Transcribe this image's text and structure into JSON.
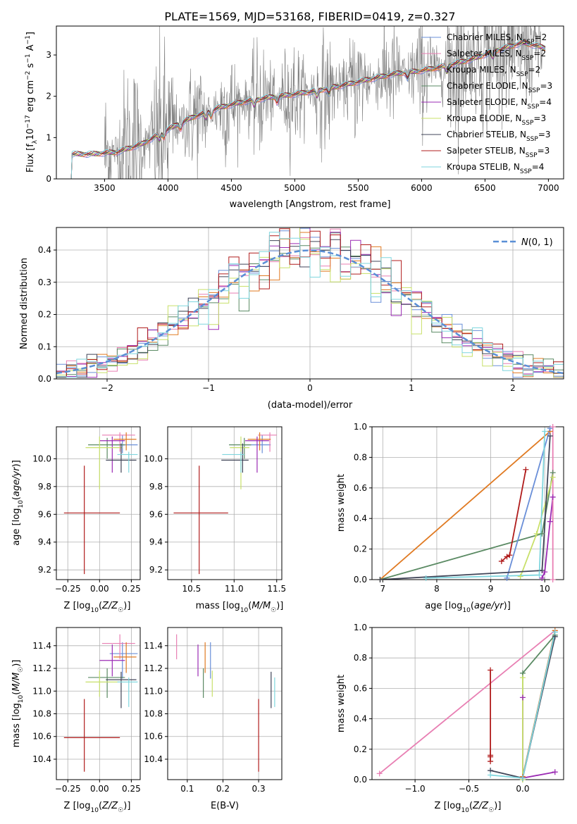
{
  "figure_title": "PLATE=1569, MJD=53168, FIBERID=0419, z=0.327",
  "colors": {
    "chabrier_miles": "#6a8fd8",
    "salpeter_miles": "#e87fb3",
    "kroupa_miles": "#e07a22",
    "chabrier_elodie": "#5a8a63",
    "salpeter_elodie": "#9b2bb4",
    "kroupa_elodie": "#c8e06a",
    "chabrier_stelib": "#404558",
    "salpeter_stelib": "#b01c1c",
    "kroupa_stelib": "#7fd6de",
    "data": "#808080",
    "normal": "#5a8fd6"
  },
  "chart_data": [
    {
      "id": "spectrum",
      "type": "line",
      "xlabel": "wavelength [Angstrom, rest frame]",
      "ylabel": "Flux [f_λ10^-17 erg cm^-2 s^-1 A^-1]",
      "xticks": [
        3500,
        4000,
        4500,
        5000,
        5500,
        6000,
        6500,
        7000
      ],
      "yticks": [
        0,
        1,
        2,
        3
      ],
      "xlim": [
        3120,
        7120
      ],
      "ylim": [
        0,
        3.7
      ],
      "legend_position": "upper-right",
      "legend": [
        {
          "label": "Chabrier MILES, N_SSP=2",
          "color_key": "chabrier_miles"
        },
        {
          "label": "Salpeter MILES, N_SSP=2",
          "color_key": "salpeter_miles"
        },
        {
          "label": "Kroupa MILES, N_SSP=2",
          "color_key": "kroupa_miles"
        },
        {
          "label": "Chabrier ELODIE, N_SSP=3",
          "color_key": "chabrier_elodie"
        },
        {
          "label": "Salpeter ELODIE, N_SSP=4",
          "color_key": "salpeter_elodie"
        },
        {
          "label": "Kroupa ELODIE, N_SSP=3",
          "color_key": "kroupa_elodie"
        },
        {
          "label": "Chabrier STELIB, N_SSP=3",
          "color_key": "chabrier_stelib"
        },
        {
          "label": "Salpeter STELIB, N_SSP=3",
          "color_key": "salpeter_stelib"
        },
        {
          "label": "Kroupa STELIB, N_SSP=4",
          "color_key": "kroupa_stelib"
        }
      ],
      "data_range": [
        3500,
        6950
      ],
      "model_anchors": {
        "x": [
          3220,
          3400,
          3600,
          3800,
          4000,
          4200,
          4400,
          4600,
          4800,
          5000,
          5200,
          5400,
          5600,
          5800,
          6000,
          6200,
          6400,
          6600,
          6800,
          7000
        ],
        "y": [
          0.6,
          0.6,
          0.65,
          0.85,
          1.2,
          1.5,
          1.72,
          1.87,
          1.97,
          2.05,
          2.15,
          2.28,
          2.42,
          2.55,
          2.62,
          2.74,
          2.9,
          3.12,
          3.3,
          3.15
        ]
      }
    },
    {
      "id": "residual_histogram",
      "type": "histogram",
      "xlabel": "(data-model)/error",
      "ylabel": "Normed distribution",
      "xlim": [
        -2.5,
        2.5
      ],
      "ylim": [
        0,
        0.47
      ],
      "xticks": [
        -2,
        -1,
        0,
        1,
        2
      ],
      "yticks": [
        0.0,
        0.1,
        0.2,
        0.3,
        0.4
      ],
      "bin_width": 0.1,
      "legend": [
        {
          "label": "N(0,1)",
          "color_key": "normal"
        }
      ]
    },
    {
      "id": "age_vs_Z",
      "type": "errorbar",
      "xlabel": "Z [log10(Z/Z☉)]",
      "ylabel": "age [log10(age/yr)]",
      "xlim": [
        -0.34,
        0.32
      ],
      "ylim": [
        9.13,
        10.23
      ],
      "xticks": [
        -0.25,
        0.0,
        0.25
      ],
      "yticks": [
        9.2,
        9.4,
        9.6,
        9.8,
        10.0
      ],
      "points": [
        {
          "color_key": "chabrier_miles",
          "x": 0.18,
          "xerr": [
            0.1,
            0.12
          ],
          "y": 10.1,
          "yerr": [
            0.06,
            0.07
          ]
        },
        {
          "color_key": "salpeter_miles",
          "x": 0.16,
          "xerr": [
            0.14,
            0.12
          ],
          "y": 10.17,
          "yerr": [
            0.12,
            0.02
          ]
        },
        {
          "color_key": "kroupa_miles",
          "x": 0.21,
          "xerr": [
            0.1,
            0.08
          ],
          "y": 10.14,
          "yerr": [
            0.08,
            0.05
          ]
        },
        {
          "color_key": "chabrier_elodie",
          "x": 0.06,
          "xerr": [
            0.15,
            0.14
          ],
          "y": 10.1,
          "yerr": [
            0.1,
            0.05
          ]
        },
        {
          "color_key": "salpeter_elodie",
          "x": 0.1,
          "xerr": [
            0.1,
            0.1
          ],
          "y": 10.13,
          "yerr": [
            0.23,
            0.03
          ]
        },
        {
          "color_key": "kroupa_elodie",
          "x": 0.0,
          "xerr": [
            0.11,
            0.18
          ],
          "y": 10.08,
          "yerr": [
            0.3,
            0.08
          ]
        },
        {
          "color_key": "chabrier_stelib",
          "x": 0.17,
          "xerr": [
            0.12,
            0.12
          ],
          "y": 9.99,
          "yerr": [
            0.09,
            0.12
          ]
        },
        {
          "color_key": "salpeter_stelib",
          "x": -0.12,
          "xerr": [
            0.16,
            0.28
          ],
          "y": 9.61,
          "yerr": [
            0.44,
            0.34
          ]
        },
        {
          "color_key": "kroupa_stelib",
          "x": 0.23,
          "xerr": [
            0.09,
            0.07
          ],
          "y": 10.03,
          "yerr": [
            0.13,
            0.02
          ]
        }
      ]
    },
    {
      "id": "age_vs_mass",
      "type": "errorbar",
      "xlabel": "mass [log10(M/M☉)]",
      "ylabel": "",
      "xlim": [
        10.22,
        11.56
      ],
      "ylim": [
        9.13,
        10.23
      ],
      "xticks": [
        10.5,
        11.0,
        11.5
      ],
      "yticks": [
        9.2,
        9.4,
        9.6,
        9.8,
        10.0
      ],
      "points": [
        {
          "color_key": "chabrier_miles",
          "x": 11.33,
          "xerr": [
            0.22,
            0.1
          ],
          "y": 10.1,
          "yerr": [
            0.06,
            0.07
          ]
        },
        {
          "color_key": "salpeter_miles",
          "x": 11.42,
          "xerr": [
            0.14,
            0.08
          ],
          "y": 10.17,
          "yerr": [
            0.12,
            0.02
          ]
        },
        {
          "color_key": "kroupa_miles",
          "x": 11.3,
          "xerr": [
            0.14,
            0.13
          ],
          "y": 10.14,
          "yerr": [
            0.08,
            0.05
          ]
        },
        {
          "color_key": "chabrier_elodie",
          "x": 11.12,
          "xerr": [
            0.18,
            0.08
          ],
          "y": 10.1,
          "yerr": [
            0.1,
            0.05
          ]
        },
        {
          "color_key": "salpeter_elodie",
          "x": 11.27,
          "xerr": [
            0.14,
            0.14
          ],
          "y": 10.13,
          "yerr": [
            0.23,
            0.03
          ]
        },
        {
          "color_key": "kroupa_elodie",
          "x": 11.08,
          "xerr": [
            0.13,
            0.1
          ],
          "y": 10.08,
          "yerr": [
            0.3,
            0.08
          ]
        },
        {
          "color_key": "chabrier_stelib",
          "x": 11.1,
          "xerr": [
            0.25,
            0.07
          ],
          "y": 9.99,
          "yerr": [
            0.09,
            0.12
          ]
        },
        {
          "color_key": "salpeter_stelib",
          "x": 10.59,
          "xerr": [
            0.3,
            0.34
          ],
          "y": 9.61,
          "yerr": [
            0.44,
            0.34
          ]
        },
        {
          "color_key": "kroupa_stelib",
          "x": 11.08,
          "xerr": [
            0.22,
            0.04
          ],
          "y": 10.03,
          "yerr": [
            0.13,
            0.02
          ]
        }
      ]
    },
    {
      "id": "mass_weight_vs_age",
      "type": "line",
      "xlabel": "age [log10(age/yr)]",
      "ylabel": "mass weight",
      "xlim": [
        6.8,
        10.35
      ],
      "ylim": [
        0,
        1.0
      ],
      "xticks": [
        7,
        8,
        9,
        10
      ],
      "yticks": [
        0.0,
        0.2,
        0.4,
        0.6,
        0.8,
        1.0
      ],
      "series": [
        {
          "color_key": "kroupa_miles",
          "x": [
            6.95,
            10.1
          ],
          "y": [
            0.0,
            0.97
          ]
        },
        {
          "color_key": "chabrier_elodie",
          "x": [
            6.95,
            9.95,
            10.15
          ],
          "y": [
            0.0,
            0.3,
            0.7
          ]
        },
        {
          "color_key": "chabrier_miles",
          "x": [
            9.3,
            10.1
          ],
          "y": [
            0.01,
            0.99
          ]
        },
        {
          "color_key": "salpeter_elodie",
          "x": [
            9.95,
            10.0,
            10.1,
            10.15
          ],
          "y": [
            0.01,
            0.05,
            0.38,
            0.54
          ]
        },
        {
          "color_key": "kroupa_elodie",
          "x": [
            9.55,
            9.85,
            10.15
          ],
          "y": [
            0.02,
            0.3,
            0.67
          ]
        },
        {
          "color_key": "chabrier_stelib",
          "x": [
            6.95,
            9.95,
            10.1
          ],
          "y": [
            0.0,
            0.06,
            0.94
          ]
        },
        {
          "color_key": "salpeter_stelib",
          "x": [
            9.2,
            9.3,
            9.35,
            9.65
          ],
          "y": [
            0.12,
            0.15,
            0.16,
            0.72
          ]
        },
        {
          "color_key": "salpeter_miles",
          "x": [
            10.15,
            10.15
          ],
          "y": [
            0.0,
            1.0
          ]
        },
        {
          "color_key": "kroupa_stelib",
          "x": [
            7.8,
            9.9,
            10.0
          ],
          "y": [
            0.01,
            0.03,
            0.97
          ]
        }
      ]
    },
    {
      "id": "mass_vs_Z",
      "type": "errorbar",
      "xlabel": "Z [log10(Z/Z☉)]",
      "ylabel": "mass [log10(M/M☉)]",
      "xlim": [
        -0.34,
        0.32
      ],
      "ylim": [
        10.22,
        11.56
      ],
      "xticks": [
        -0.25,
        0.0,
        0.25
      ],
      "yticks": [
        10.4,
        10.6,
        10.8,
        11.0,
        11.2,
        11.4
      ],
      "points": [
        {
          "color_key": "chabrier_miles",
          "x": 0.18,
          "xerr": [
            0.1,
            0.12
          ],
          "y": 11.33,
          "yerr": [
            0.22,
            0.1
          ]
        },
        {
          "color_key": "salpeter_miles",
          "x": 0.16,
          "xerr": [
            0.14,
            0.12
          ],
          "y": 11.42,
          "yerr": [
            0.14,
            0.08
          ]
        },
        {
          "color_key": "kroupa_miles",
          "x": 0.21,
          "xerr": [
            0.1,
            0.08
          ],
          "y": 11.3,
          "yerr": [
            0.14,
            0.13
          ]
        },
        {
          "color_key": "chabrier_elodie",
          "x": 0.06,
          "xerr": [
            0.15,
            0.14
          ],
          "y": 11.12,
          "yerr": [
            0.18,
            0.08
          ]
        },
        {
          "color_key": "salpeter_elodie",
          "x": 0.1,
          "xerr": [
            0.1,
            0.1
          ],
          "y": 11.27,
          "yerr": [
            0.14,
            0.14
          ]
        },
        {
          "color_key": "kroupa_elodie",
          "x": 0.0,
          "xerr": [
            0.11,
            0.18
          ],
          "y": 11.08,
          "yerr": [
            0.13,
            0.1
          ]
        },
        {
          "color_key": "chabrier_stelib",
          "x": 0.17,
          "xerr": [
            0.12,
            0.12
          ],
          "y": 11.1,
          "yerr": [
            0.25,
            0.07
          ]
        },
        {
          "color_key": "salpeter_stelib",
          "x": -0.12,
          "xerr": [
            0.16,
            0.28
          ],
          "y": 10.59,
          "yerr": [
            0.3,
            0.34
          ]
        },
        {
          "color_key": "kroupa_stelib",
          "x": 0.23,
          "xerr": [
            0.09,
            0.07
          ],
          "y": 11.08,
          "yerr": [
            0.22,
            0.04
          ]
        }
      ]
    },
    {
      "id": "mass_vs_ebv",
      "type": "errorbar",
      "xlabel": "E(B-V)",
      "ylabel": "",
      "xlim": [
        0.045,
        0.365
      ],
      "ylim": [
        10.22,
        11.56
      ],
      "xticks": [
        0.1,
        0.2,
        0.3
      ],
      "yticks": [
        10.4,
        10.6,
        10.8,
        11.0,
        11.2,
        11.4
      ],
      "points": [
        {
          "color_key": "chabrier_miles",
          "x": 0.165,
          "y": 11.33,
          "yerr": [
            0.22,
            0.1
          ]
        },
        {
          "color_key": "salpeter_miles",
          "x": 0.07,
          "y": 11.42,
          "yerr": [
            0.14,
            0.08
          ]
        },
        {
          "color_key": "kroupa_miles",
          "x": 0.15,
          "y": 11.3,
          "yerr": [
            0.14,
            0.13
          ]
        },
        {
          "color_key": "chabrier_elodie",
          "x": 0.145,
          "y": 11.12,
          "yerr": [
            0.18,
            0.08
          ]
        },
        {
          "color_key": "salpeter_elodie",
          "x": 0.13,
          "y": 11.27,
          "yerr": [
            0.14,
            0.14
          ]
        },
        {
          "color_key": "kroupa_elodie",
          "x": 0.17,
          "y": 11.08,
          "yerr": [
            0.13,
            0.1
          ]
        },
        {
          "color_key": "chabrier_stelib",
          "x": 0.335,
          "y": 11.1,
          "yerr": [
            0.25,
            0.07
          ]
        },
        {
          "color_key": "salpeter_stelib",
          "x": 0.3,
          "y": 10.59,
          "yerr": [
            0.3,
            0.34
          ]
        },
        {
          "color_key": "kroupa_stelib",
          "x": 0.345,
          "y": 11.08,
          "yerr": [
            0.22,
            0.04
          ]
        }
      ]
    },
    {
      "id": "mass_weight_vs_Z",
      "type": "line",
      "xlabel": "Z [log10(Z/Z☉)]",
      "ylabel": "mass weight",
      "xlim": [
        -1.4,
        0.38
      ],
      "ylim": [
        0,
        1.0
      ],
      "xticks": [
        -1.0,
        -0.5,
        0.0
      ],
      "yticks": [
        0.0,
        0.2,
        0.4,
        0.6,
        0.8,
        1.0
      ],
      "series": [
        {
          "color_key": "salpeter_miles",
          "x": [
            -1.33,
            0.3
          ],
          "y": [
            0.04,
            0.98
          ]
        },
        {
          "color_key": "kroupa_miles",
          "x": [
            0.0,
            0.3
          ],
          "y": [
            0.02,
            0.98
          ]
        },
        {
          "color_key": "chabrier_miles",
          "x": [
            0.0,
            0.3
          ],
          "y": [
            0.01,
            0.97
          ]
        },
        {
          "color_key": "chabrier_elodie",
          "x": [
            0.0,
            0.0,
            0.3
          ],
          "y": [
            0.0,
            0.7,
            0.95
          ]
        },
        {
          "color_key": "salpeter_elodie",
          "x": [
            0.0,
            0.0,
            0.3
          ],
          "y": [
            0.54,
            0.01,
            0.05
          ]
        },
        {
          "color_key": "kroupa_elodie",
          "x": [
            0.0,
            0.0
          ],
          "y": [
            0.0,
            0.67
          ]
        },
        {
          "color_key": "chabrier_stelib",
          "x": [
            -0.3,
            0.0,
            0.3
          ],
          "y": [
            0.06,
            0.01,
            0.94
          ]
        },
        {
          "color_key": "salpeter_stelib",
          "x": [
            -0.3,
            -0.3,
            -0.3,
            -0.3
          ],
          "y": [
            0.12,
            0.15,
            0.16,
            0.72
          ]
        },
        {
          "color_key": "kroupa_stelib",
          "x": [
            -0.3,
            0.0,
            0.3
          ],
          "y": [
            0.03,
            0.01,
            0.97
          ]
        }
      ]
    }
  ]
}
